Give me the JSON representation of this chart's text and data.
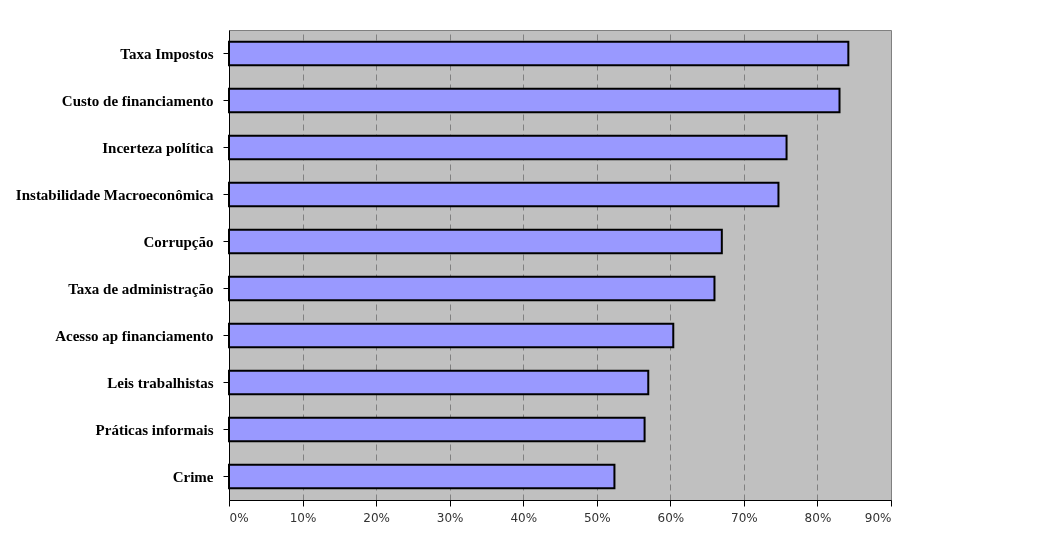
{
  "chart_data": {
    "type": "bar",
    "orientation": "horizontal",
    "categories": [
      "Taxa Impostos",
      "Custo de financiamento",
      "Incerteza política",
      "Instabilidade Macroeconômica",
      "Corrupção",
      "Taxa de administração",
      "Acesso ap financiamento",
      "Leis trabalhistas",
      "Práticas informais",
      "Crime"
    ],
    "values": [
      84.2,
      83.0,
      75.8,
      74.7,
      67.0,
      66.0,
      60.4,
      57.0,
      56.5,
      52.4
    ],
    "color": "#9999ff",
    "xlim": [
      0,
      90
    ],
    "xticks": [
      {
        "value": 0,
        "label": "0%"
      },
      {
        "value": 10,
        "label": "10%"
      },
      {
        "value": 20,
        "label": "20%"
      },
      {
        "value": 30,
        "label": "30%"
      },
      {
        "value": 40,
        "label": "40%"
      },
      {
        "value": 50,
        "label": "50%"
      },
      {
        "value": 60,
        "label": "60%"
      },
      {
        "value": 70,
        "label": "70%"
      },
      {
        "value": 80,
        "label": "80%"
      },
      {
        "value": 90,
        "label": "90%"
      }
    ],
    "grid": "x"
  }
}
